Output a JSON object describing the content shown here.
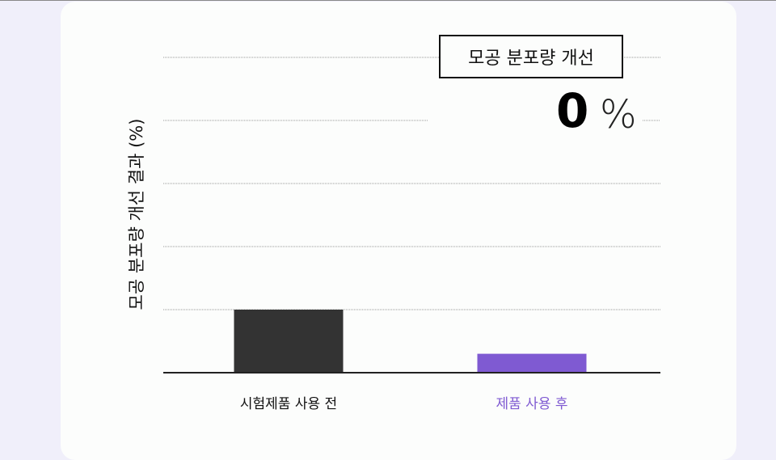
{
  "chart_data": {
    "type": "bar",
    "title": "",
    "ylabel": "모공 분포량 개선 결과 (%)",
    "xlabel": "",
    "categories": [
      "시험제품 사용 전",
      "제품 사용 후"
    ],
    "values": [
      1.0,
      0.3
    ],
    "ylim": [
      0,
      5
    ],
    "grid": true,
    "colors": [
      "#333333",
      "#7f5ad2"
    ],
    "category_label_colors": [
      "#111111",
      "#7f5ad2"
    ],
    "annotation": {
      "label": "모공 분포량 개선",
      "value": "0",
      "unit": "%"
    }
  },
  "colors": {
    "background": "#f0effa",
    "card": "#fcfdfc"
  }
}
